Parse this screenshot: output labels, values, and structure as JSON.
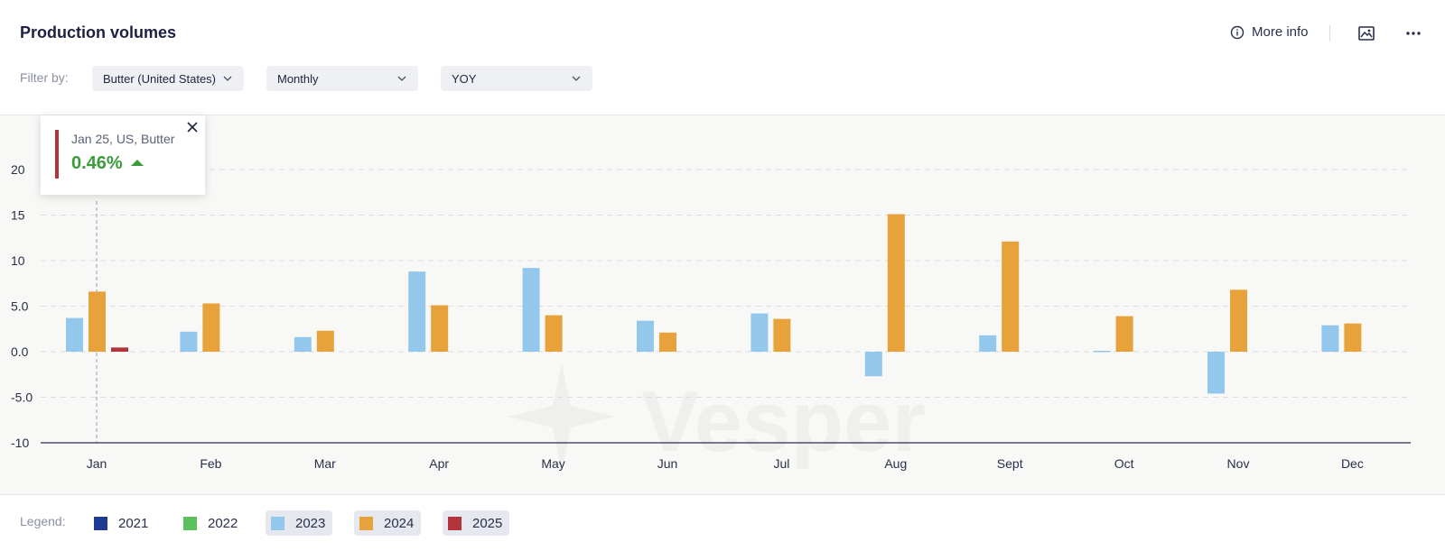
{
  "header": {
    "title": "Production volumes",
    "more_info_label": "More info",
    "icons": {
      "info": "info-icon",
      "image": "image-icon",
      "more": "more-dots-icon"
    }
  },
  "filters": {
    "label": "Filter by:",
    "product": "Butter (United States)",
    "frequency": "Monthly",
    "mode": "YOY"
  },
  "tooltip": {
    "title": "Jan 25, US, Butter",
    "value": "0.46%",
    "trend": "up",
    "color": "#b3343a",
    "value_color": "#3a9c3a"
  },
  "watermark": "Vesper",
  "legend": {
    "label": "Legend:",
    "items": [
      {
        "label": "2021",
        "color": "#1f3a93",
        "active": false
      },
      {
        "label": "2022",
        "color": "#5cc05c",
        "active": false
      },
      {
        "label": "2023",
        "color": "#93c8ec",
        "active": true
      },
      {
        "label": "2024",
        "color": "#e8a23b",
        "active": true
      },
      {
        "label": "2025",
        "color": "#b3343a",
        "active": true
      }
    ]
  },
  "chart_data": {
    "type": "bar",
    "categories": [
      "Jan",
      "Feb",
      "Mar",
      "Apr",
      "May",
      "Jun",
      "Jul",
      "Aug",
      "Sept",
      "Oct",
      "Nov",
      "Dec"
    ],
    "series": [
      {
        "name": "2023",
        "color": "#93c8ec",
        "values": [
          3.7,
          2.2,
          1.6,
          8.8,
          9.2,
          3.4,
          4.2,
          -2.7,
          1.8,
          0.1,
          -4.6,
          2.9
        ]
      },
      {
        "name": "2024",
        "color": "#e8a23b",
        "values": [
          6.6,
          5.3,
          2.3,
          5.1,
          4.0,
          2.1,
          3.6,
          15.1,
          12.1,
          3.9,
          6.8,
          3.1
        ]
      },
      {
        "name": "2025",
        "color": "#b3343a",
        "values": [
          0.46,
          null,
          null,
          null,
          null,
          null,
          null,
          null,
          null,
          null,
          null,
          null
        ]
      }
    ],
    "y_ticks": [
      "20",
      "15",
      "10",
      "5.0",
      "0.0",
      "-5.0",
      "-10"
    ],
    "ylim": [
      -10,
      20
    ],
    "grid": true,
    "legend_position": "bottom-left"
  }
}
